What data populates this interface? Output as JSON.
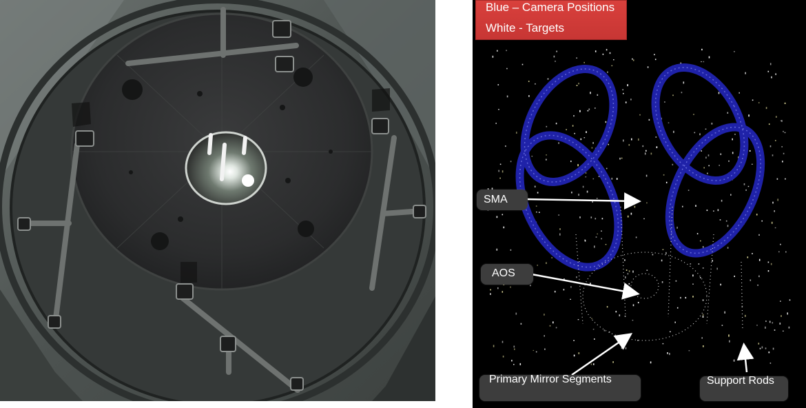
{
  "photo": {
    "subject": "telescope-interior-photo"
  },
  "diagram": {
    "legend": {
      "line1": "Blue – Camera Positions",
      "line2": "White - Targets"
    },
    "callouts": {
      "sma": "SMA",
      "aos": "AOS",
      "primary_mirror": "Primary Mirror Segments",
      "support_rods": "Support Rods"
    },
    "colors": {
      "camera_positions": "#1f22a8",
      "targets": "#ffffff",
      "legend_bg": "#d13b38",
      "callout_bg": "#3d3d3d"
    }
  }
}
